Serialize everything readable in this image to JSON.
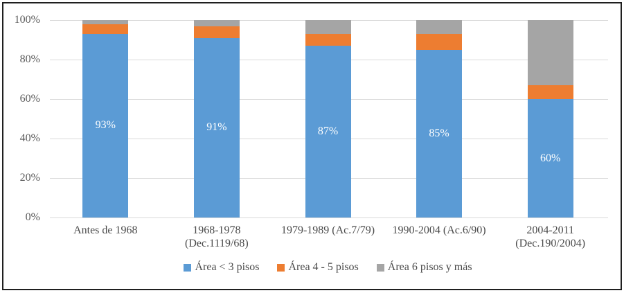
{
  "chart_data": {
    "type": "bar",
    "variant": "stacked-100-percent",
    "title": "",
    "xlabel": "",
    "ylabel": "",
    "ylim": [
      0,
      100
    ],
    "grid": true,
    "legend_position": "bottom",
    "y_ticks": [
      "0%",
      "20%",
      "40%",
      "60%",
      "80%",
      "100%"
    ],
    "y_tick_values": [
      0,
      20,
      40,
      60,
      80,
      100
    ],
    "categories": [
      "Antes de 1968",
      "1968-1978\n(Dec.1119/68)",
      "1979-1989 (Ac.7/79)",
      "1990-2004 (Ac.6/90)",
      "2004-2011\n(Dec.190/2004)"
    ],
    "series": [
      {
        "name": "Área < 3 pisos",
        "color": "#5b9bd5",
        "values": [
          93,
          91,
          87,
          85,
          60
        ]
      },
      {
        "name": "Área 4 - 5 pisos",
        "color": "#ed7d31",
        "values": [
          5,
          6,
          6,
          8,
          7
        ]
      },
      {
        "name": "Área 6 pisos y más",
        "color": "#a5a5a5",
        "values": [
          2,
          3,
          7,
          7,
          33
        ]
      }
    ],
    "data_labels_on_series": "Área < 3 pisos",
    "data_labels": [
      "93%",
      "91%",
      "87%",
      "85%",
      "60%"
    ]
  },
  "style": {
    "gridline_color": "#d9d9d9",
    "tick_text_color": "#5a5a5a",
    "axis_text_color": "#4a4a4a",
    "data_label_color": "#ffffff",
    "frame_border_color": "#1f1f1f",
    "background_color": "#ffffff"
  }
}
